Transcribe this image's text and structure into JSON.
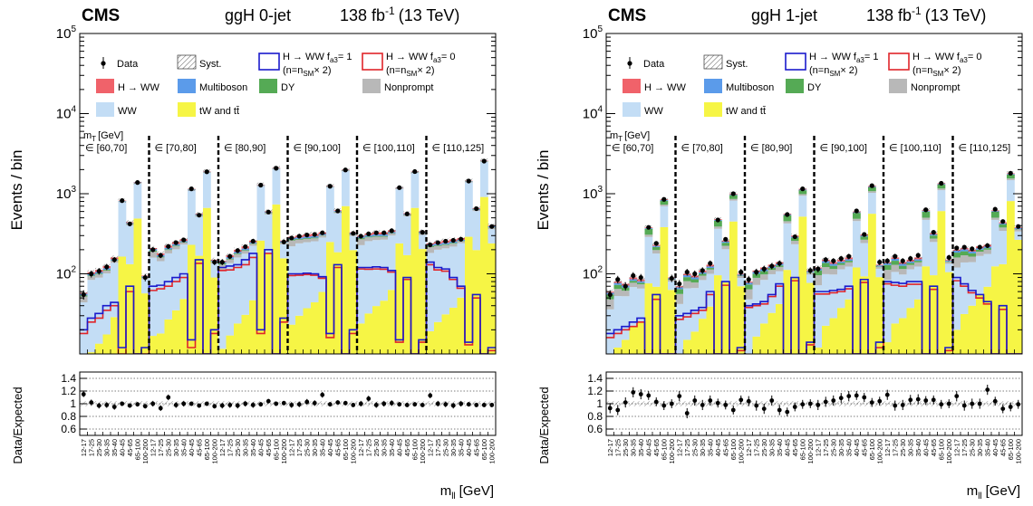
{
  "colors": {
    "hww": "#f0626a",
    "multiboson": "#5b9bea",
    "dy": "#55aa55",
    "nonprompt": "#b8b8b8",
    "ww": "#c3ddf5",
    "top": "#f6f545",
    "sig_fa3_1": "#1a1acc",
    "sig_fa3_0": "#e0252a",
    "data": "#000000"
  },
  "panels": [
    {
      "cms": "CMS",
      "category": "ggH 0-jet",
      "lumi": "138 fb",
      "lumi_sup": "-1",
      "energy": "(13 TeV)",
      "ylabel": "Events / bin",
      "ratio_ylabel": "Data/Expected",
      "xlabel": "m",
      "xlabel_sub": "ll",
      "xlabel_unit": "[GeV]",
      "mt_label": "m",
      "mt_label_sub": "T",
      "mt_label_unit": "[GeV]",
      "legend": {
        "data": "Data",
        "syst": "Syst.",
        "sig1_line1": "H → WW f",
        "sig1_sub": "a3",
        "sig1_eq": "= 1",
        "sig1_line2": "(n=n",
        "sig1_line2_sub": "SM",
        "sig1_line2_end": "× 2)",
        "sig0_line1": "H → WW f",
        "sig0_sub": "a3",
        "sig0_eq": "= 0",
        "sig0_line2": "(n=n",
        "sig0_line2_sub": "SM",
        "sig0_line2_end": "× 2)",
        "hww": "H → WW",
        "multiboson": "Multiboson",
        "dy": "DY",
        "nonprompt": "Nonprompt",
        "ww": "WW",
        "top": "tW and tt̄"
      },
      "mt_bins": [
        "∈ [60,70]",
        "∈ [70,80]",
        "∈ [80,90]",
        "∈ [90,100]",
        "∈ [100,110]",
        "∈ [110,125]"
      ]
    },
    {
      "cms": "CMS",
      "category": "ggH 1-jet",
      "lumi": "138 fb",
      "lumi_sup": "-1",
      "energy": "(13 TeV)",
      "ylabel": "Events / bin",
      "ratio_ylabel": "Data/Expected",
      "xlabel": "m",
      "xlabel_sub": "ll",
      "xlabel_unit": "[GeV]",
      "mt_label": "m",
      "mt_label_sub": "T",
      "mt_label_unit": "[GeV]",
      "legend": {
        "data": "Data",
        "syst": "Syst.",
        "sig1_line1": "H → WW f",
        "sig1_sub": "a3",
        "sig1_eq": "= 1",
        "sig1_line2": "(n=n",
        "sig1_line2_sub": "SM",
        "sig1_line2_end": "× 2)",
        "sig0_line1": "H → WW f",
        "sig0_sub": "a3",
        "sig0_eq": "= 0",
        "sig0_line2": "(n=n",
        "sig0_line2_sub": "SM",
        "sig0_line2_end": "× 2)",
        "hww": "H → WW",
        "multiboson": "Multiboson",
        "dy": "DY",
        "nonprompt": "Nonprompt",
        "ww": "WW",
        "top": "tW and tt̄"
      },
      "mt_bins": [
        "∈ [60,70]",
        "∈ [70,80]",
        "∈ [80,90]",
        "∈ [90,100]",
        "∈ [100,110]",
        "∈ [110,125]"
      ]
    }
  ],
  "chart_data": [
    {
      "type": "bar",
      "stacked": true,
      "title": "ggH 0-jet",
      "ylabel": "Events / bin",
      "xlabel": "mll [GeV]",
      "yscale": "log",
      "ylim": [
        10,
        100000
      ],
      "ratio_ylim": [
        0.5,
        1.5
      ],
      "ratio_ticks": [
        0.6,
        0.8,
        1,
        1.2,
        1.4
      ],
      "categories": [
        "12-17",
        "17-25",
        "25-30",
        "30-35",
        "35-40",
        "40-45",
        "45-65",
        "65-100",
        "100-200"
      ],
      "mt_groups": [
        "[60,70]",
        "[70,80]",
        "[80,90]",
        "[90,100]",
        "[100,110]",
        "[110,125]"
      ],
      "series_order": [
        "top",
        "ww",
        "nonprompt",
        "dy",
        "multiboson",
        "hww"
      ],
      "totals": [
        [
          58,
          105,
          112,
          125,
          160,
          820,
          440,
          1400,
          95
        ],
        [
          210,
          180,
          225,
          250,
          270,
          1150,
          560,
          1900,
          150
        ],
        [
          145,
          170,
          200,
          220,
          260,
          1300,
          600,
          2100,
          260
        ],
        [
          290,
          300,
          310,
          315,
          330,
          1250,
          620,
          2000,
          330
        ],
        [
          300,
          320,
          330,
          330,
          350,
          1200,
          570,
          1900,
          340
        ],
        [
          240,
          250,
          260,
          270,
          280,
          1450,
          660,
          2600,
          400
        ]
      ],
      "fractions": {
        "top": [
          0.08,
          0.1,
          0.12,
          0.14,
          0.18,
          0.2,
          0.3,
          0.35,
          0.6
        ],
        "nonprompt": [
          0.14,
          0.09,
          0.08,
          0.07,
          0.05,
          0.02,
          0.03,
          0.02,
          0.04
        ],
        "dy": [
          0.03,
          0.02,
          0.02,
          0.02,
          0.01,
          0.005,
          0.01,
          0.005,
          0.01
        ],
        "multiboson": [
          0.04,
          0.04,
          0.04,
          0.04,
          0.03,
          0.01,
          0.02,
          0.01,
          0.03
        ],
        "hww": [
          0.03,
          0.05,
          0.06,
          0.06,
          0.05,
          0.01,
          0.02,
          0.01,
          0.02
        ]
      },
      "signal_fa3_1": [
        [
          20,
          28,
          32,
          40,
          44,
          12,
          70,
          5,
          12
        ],
        [
          70,
          72,
          80,
          90,
          100,
          15,
          150,
          5,
          20
        ],
        [
          120,
          125,
          130,
          150,
          180,
          20,
          200,
          5,
          28
        ],
        [
          100,
          100,
          102,
          100,
          92,
          18,
          130,
          5,
          20
        ],
        [
          120,
          120,
          122,
          120,
          110,
          15,
          90,
          5,
          15
        ],
        [
          140,
          120,
          115,
          90,
          70,
          14,
          55,
          4,
          12
        ]
      ],
      "signal_fa3_0": [
        [
          18,
          25,
          28,
          35,
          40,
          10,
          60,
          4,
          10
        ],
        [
          62,
          65,
          70,
          80,
          90,
          12,
          135,
          4,
          18
        ],
        [
          110,
          112,
          120,
          130,
          160,
          18,
          180,
          4,
          25
        ],
        [
          95,
          96,
          98,
          96,
          88,
          16,
          120,
          4,
          18
        ],
        [
          115,
          114,
          115,
          114,
          105,
          14,
          85,
          4,
          14
        ],
        [
          130,
          112,
          108,
          85,
          66,
          13,
          50,
          4,
          11
        ]
      ],
      "data": [
        [
          55,
          100,
          108,
          122,
          150,
          820,
          420,
          1380,
          90
        ],
        [
          200,
          170,
          220,
          245,
          265,
          1150,
          540,
          1880,
          140
        ],
        [
          140,
          165,
          195,
          218,
          255,
          1280,
          590,
          2080,
          250
        ],
        [
          280,
          295,
          305,
          310,
          325,
          1240,
          610,
          1980,
          320
        ],
        [
          295,
          315,
          325,
          325,
          345,
          1190,
          560,
          1890,
          330
        ],
        [
          230,
          245,
          255,
          262,
          270,
          1440,
          650,
          2550,
          390
        ]
      ],
      "ratio": [
        [
          1.15,
          1.02,
          0.97,
          0.98,
          0.95,
          1.0,
          0.97,
          0.99,
          0.96
        ],
        [
          1.0,
          0.93,
          1.1,
          0.98,
          1.0,
          1.0,
          0.97,
          1.0,
          0.96
        ],
        [
          0.97,
          0.98,
          0.97,
          1.0,
          0.98,
          0.99,
          1.04,
          1.0,
          1.01
        ],
        [
          0.98,
          0.99,
          1.03,
          1.01,
          1.14,
          0.99,
          1.02,
          1.01,
          0.98
        ],
        [
          1.0,
          1.08,
          0.98,
          1.0,
          1.01,
          0.99,
          0.98,
          0.99,
          0.98
        ],
        [
          1.13,
          1.0,
          0.99,
          0.97,
          1.0,
          0.99,
          0.98,
          0.98,
          0.98
        ]
      ]
    },
    {
      "type": "bar",
      "stacked": true,
      "title": "ggH 1-jet",
      "ylabel": "Events / bin",
      "xlabel": "mll [GeV]",
      "yscale": "log",
      "ylim": [
        10,
        100000
      ],
      "ratio_ylim": [
        0.5,
        1.5
      ],
      "ratio_ticks": [
        0.6,
        0.8,
        1,
        1.2,
        1.4
      ],
      "categories": [
        "12-17",
        "17-25",
        "25-30",
        "30-35",
        "35-40",
        "40-45",
        "45-65",
        "65-100",
        "100-200"
      ],
      "mt_groups": [
        "[60,70]",
        "[70,80]",
        "[80,90]",
        "[90,100]",
        "[100,110]",
        "[110,125]"
      ],
      "series_order": [
        "top",
        "ww",
        "nonprompt",
        "dy",
        "multiboson",
        "hww"
      ],
      "totals": [
        [
          60,
          80,
          75,
          90,
          85,
          380,
          230,
          850,
          90
        ],
        [
          70,
          100,
          95,
          110,
          130,
          480,
          260,
          1000,
          100
        ],
        [
          80,
          110,
          120,
          130,
          140,
          560,
          300,
          1150,
          110
        ],
        [
          120,
          150,
          140,
          150,
          160,
          600,
          310,
          1250,
          130
        ],
        [
          140,
          160,
          140,
          150,
          160,
          620,
          320,
          1350,
          150
        ],
        [
          200,
          210,
          200,
          220,
          230,
          620,
          440,
          1800,
          380
        ]
      ],
      "fractions": {
        "top": [
          0.1,
          0.15,
          0.2,
          0.25,
          0.3,
          0.2,
          0.3,
          0.45,
          0.7
        ],
        "nonprompt": [
          0.2,
          0.15,
          0.12,
          0.1,
          0.1,
          0.05,
          0.08,
          0.04,
          0.05
        ],
        "dy": [
          0.12,
          0.1,
          0.08,
          0.05,
          0.04,
          0.15,
          0.08,
          0.1,
          0.01
        ],
        "multiboson": [
          0.05,
          0.05,
          0.05,
          0.04,
          0.04,
          0.02,
          0.03,
          0.02,
          0.03
        ],
        "hww": [
          0.03,
          0.04,
          0.05,
          0.05,
          0.05,
          0.02,
          0.03,
          0.02,
          0.02
        ]
      },
      "signal_fa3_1": [
        [
          18,
          20,
          22,
          25,
          28,
          6,
          55,
          5,
          10
        ],
        [
          30,
          32,
          35,
          38,
          60,
          6,
          80,
          5,
          12
        ],
        [
          40,
          42,
          45,
          55,
          75,
          8,
          90,
          5,
          14
        ],
        [
          60,
          60,
          62,
          64,
          70,
          8,
          85,
          5,
          14
        ],
        [
          80,
          78,
          76,
          80,
          80,
          8,
          70,
          5,
          12
        ],
        [
          90,
          75,
          62,
          55,
          45,
          6,
          40,
          5,
          10
        ]
      ],
      "signal_fa3_0": [
        [
          16,
          18,
          20,
          22,
          25,
          5,
          48,
          4,
          9
        ],
        [
          27,
          29,
          32,
          35,
          55,
          5,
          72,
          4,
          11
        ],
        [
          38,
          40,
          42,
          52,
          70,
          7,
          82,
          4,
          13
        ],
        [
          56,
          56,
          58,
          60,
          65,
          7,
          78,
          4,
          12
        ],
        [
          75,
          72,
          70,
          74,
          74,
          7,
          64,
          4,
          11
        ],
        [
          82,
          70,
          58,
          50,
          42,
          5,
          36,
          4,
          9
        ]
      ],
      "data": [
        [
          55,
          85,
          70,
          95,
          90,
          380,
          240,
          850,
          88
        ],
        [
          75,
          105,
          100,
          110,
          135,
          470,
          270,
          1000,
          105
        ],
        [
          85,
          105,
          115,
          125,
          135,
          550,
          290,
          1150,
          110
        ],
        [
          115,
          150,
          145,
          155,
          165,
          610,
          310,
          1260,
          140
        ],
        [
          145,
          165,
          145,
          155,
          170,
          630,
          330,
          1350,
          160
        ],
        [
          210,
          215,
          205,
          215,
          225,
          640,
          450,
          1800,
          390
        ]
      ],
      "ratio": [
        [
          0.93,
          0.9,
          1.02,
          1.18,
          1.15,
          1.13,
          1.03,
          0.97,
          1.0
        ],
        [
          1.12,
          0.85,
          1.05,
          0.98,
          1.05,
          1.01,
          0.98,
          0.9,
          1.06
        ],
        [
          1.04,
          0.97,
          0.92,
          1.05,
          0.9,
          0.87,
          0.95,
          0.99,
          1.0
        ],
        [
          0.98,
          1.03,
          1.05,
          1.09,
          1.12,
          1.13,
          1.1,
          1.02,
          1.04
        ],
        [
          1.14,
          0.97,
          0.98,
          1.06,
          1.07,
          1.05,
          1.06,
          0.99,
          1.0
        ],
        [
          1.12,
          0.97,
          1.0,
          1.0,
          1.22,
          1.04,
          0.92,
          0.95,
          0.99
        ]
      ]
    }
  ]
}
